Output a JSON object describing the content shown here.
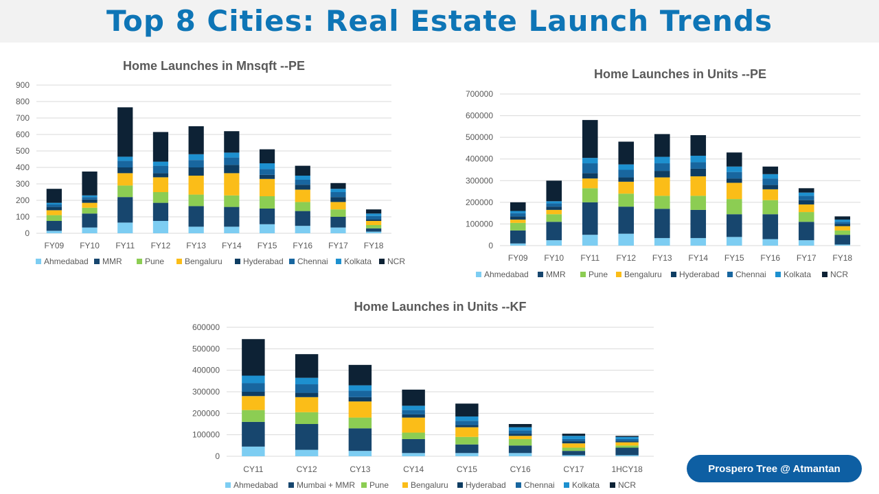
{
  "page": {
    "title": "Top 8 Cities: Real Estate Launch Trends"
  },
  "brand": {
    "label": "Prospero Tree @ Atmantan"
  },
  "colors": {
    "Ahmedabad": "#7dcdf2",
    "MMR": "#17466e",
    "Pune": "#8ccd53",
    "Bengaluru": "#fbbd18",
    "Hyderabad": "#0e3d62",
    "Chennai": "#18669f",
    "Kolkata": "#1d90cf",
    "NCR": "#0d2235"
  },
  "chart_data": [
    {
      "type": "bar",
      "stacked": true,
      "title": "Home Launches in Mnsqft --PE",
      "categories": [
        "FY09",
        "FY10",
        "FY11",
        "FY12",
        "FY13",
        "FY14",
        "FY15",
        "FY16",
        "FY17",
        "FY18"
      ],
      "ylim": [
        0,
        900
      ],
      "yticks": [
        0,
        100,
        200,
        300,
        400,
        500,
        600,
        700,
        800,
        900
      ],
      "grid": true,
      "legend": "bottom",
      "series": [
        {
          "name": "Ahmedabad",
          "values": [
            15,
            35,
            65,
            75,
            40,
            40,
            55,
            45,
            35,
            10
          ]
        },
        {
          "name": "MMR",
          "values": [
            60,
            85,
            155,
            110,
            125,
            120,
            95,
            90,
            65,
            20
          ]
        },
        {
          "name": "Pune",
          "values": [
            35,
            35,
            70,
            65,
            70,
            70,
            75,
            55,
            45,
            20
          ]
        },
        {
          "name": "Bengaluru",
          "values": [
            30,
            30,
            75,
            90,
            115,
            135,
            105,
            75,
            45,
            25
          ]
        },
        {
          "name": "Hyderabad",
          "values": [
            20,
            20,
            35,
            25,
            50,
            50,
            25,
            30,
            30,
            10
          ]
        },
        {
          "name": "Chennai",
          "values": [
            15,
            15,
            40,
            45,
            45,
            45,
            35,
            30,
            30,
            20
          ]
        },
        {
          "name": "Kolkata",
          "values": [
            10,
            10,
            25,
            25,
            35,
            30,
            35,
            25,
            20,
            15
          ]
        },
        {
          "name": "NCR",
          "values": [
            85,
            145,
            300,
            180,
            170,
            130,
            85,
            60,
            35,
            25
          ]
        }
      ]
    },
    {
      "type": "bar",
      "stacked": true,
      "title": "Home Launches in Units --PE",
      "categories": [
        "FY09",
        "FY10",
        "FY11",
        "FY12",
        "FY13",
        "FY14",
        "FY15",
        "FY16",
        "FY17",
        "FY18"
      ],
      "ylim": [
        0,
        700000
      ],
      "yticks": [
        0,
        100000,
        200000,
        300000,
        400000,
        500000,
        600000,
        700000
      ],
      "grid": true,
      "legend": "bottom",
      "series": [
        {
          "name": "Ahmedabad",
          "values": [
            10000,
            25000,
            50000,
            55000,
            35000,
            35000,
            40000,
            30000,
            25000,
            5000
          ]
        },
        {
          "name": "MMR",
          "values": [
            60000,
            85000,
            150000,
            125000,
            135000,
            130000,
            105000,
            115000,
            85000,
            45000
          ]
        },
        {
          "name": "Pune",
          "values": [
            35000,
            35000,
            65000,
            60000,
            60000,
            65000,
            70000,
            65000,
            45000,
            20000
          ]
        },
        {
          "name": "Bengaluru",
          "values": [
            15000,
            20000,
            45000,
            55000,
            85000,
            90000,
            75000,
            50000,
            35000,
            20000
          ]
        },
        {
          "name": "Hyderabad",
          "values": [
            15000,
            15000,
            25000,
            20000,
            30000,
            35000,
            20000,
            20000,
            20000,
            10000
          ]
        },
        {
          "name": "Chennai",
          "values": [
            15000,
            15000,
            45000,
            35000,
            35000,
            30000,
            30000,
            30000,
            20000,
            10000
          ]
        },
        {
          "name": "Kolkata",
          "values": [
            10000,
            10000,
            25000,
            25000,
            30000,
            30000,
            25000,
            20000,
            15000,
            10000
          ]
        },
        {
          "name": "NCR",
          "values": [
            40000,
            95000,
            175000,
            105000,
            105000,
            95000,
            65000,
            35000,
            20000,
            15000
          ]
        }
      ]
    },
    {
      "type": "bar",
      "stacked": true,
      "title": "Home Launches in Units --KF",
      "categories": [
        "CY11",
        "CY12",
        "CY13",
        "CY14",
        "CY15",
        "CY16",
        "CY17",
        "1HCY18"
      ],
      "ylim": [
        0,
        600000
      ],
      "yticks": [
        0,
        100000,
        200000,
        300000,
        400000,
        500000,
        600000
      ],
      "grid": true,
      "legend": "bottom",
      "series": [
        {
          "name": "Ahmedabad",
          "values": [
            45000,
            30000,
            25000,
            15000,
            15000,
            15000,
            5000,
            5000
          ]
        },
        {
          "name": "Mumbai + MMR",
          "values": [
            115000,
            120000,
            105000,
            65000,
            40000,
            35000,
            20000,
            35000
          ]
        },
        {
          "name": "Pune",
          "values": [
            55000,
            55000,
            50000,
            30000,
            35000,
            30000,
            15000,
            10000
          ]
        },
        {
          "name": "Bengaluru",
          "values": [
            65000,
            70000,
            75000,
            70000,
            45000,
            15000,
            20000,
            15000
          ]
        },
        {
          "name": "Hyderabad",
          "values": [
            20000,
            20000,
            20000,
            15000,
            10000,
            10000,
            10000,
            5000
          ]
        },
        {
          "name": "Chennai",
          "values": [
            40000,
            40000,
            30000,
            20000,
            20000,
            15000,
            10000,
            10000
          ]
        },
        {
          "name": "Kolkata",
          "values": [
            35000,
            30000,
            25000,
            20000,
            20000,
            15000,
            15000,
            10000
          ]
        },
        {
          "name": "NCR",
          "values": [
            170000,
            110000,
            95000,
            75000,
            60000,
            15000,
            10000,
            5000
          ]
        }
      ]
    }
  ]
}
